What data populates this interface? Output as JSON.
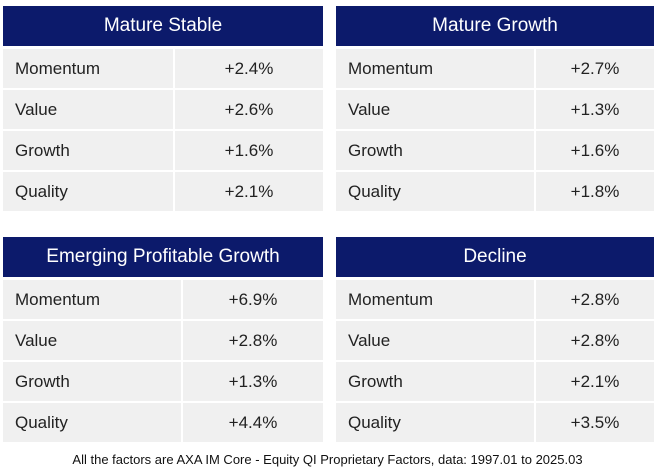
{
  "tables": [
    {
      "title": "Mature Stable",
      "rows": [
        [
          "Momentum",
          "+2.4%"
        ],
        [
          "Value",
          "+2.6%"
        ],
        [
          "Growth",
          "+1.6%"
        ],
        [
          "Quality",
          "+2.1%"
        ]
      ]
    },
    {
      "title": "Mature Growth",
      "rows": [
        [
          "Momentum",
          "+2.7%"
        ],
        [
          "Value",
          "+1.3%"
        ],
        [
          "Growth",
          "+1.6%"
        ],
        [
          "Quality",
          "+1.8%"
        ]
      ]
    },
    {
      "title": "Emerging Profitable Growth",
      "rows": [
        [
          "Momentum",
          "+6.9%"
        ],
        [
          "Value",
          "+2.8%"
        ],
        [
          "Growth",
          "+1.3%"
        ],
        [
          "Quality",
          "+4.4%"
        ]
      ]
    },
    {
      "title": "Decline",
      "rows": [
        [
          "Momentum",
          "+2.8%"
        ],
        [
          "Value",
          "+2.8%"
        ],
        [
          "Growth",
          "+2.1%"
        ],
        [
          "Quality",
          "+3.5%"
        ]
      ]
    }
  ],
  "footnote": "All the factors are AXA IM Core - Equity QI Proprietary Factors, data: 1997.01 to 2025.03"
}
